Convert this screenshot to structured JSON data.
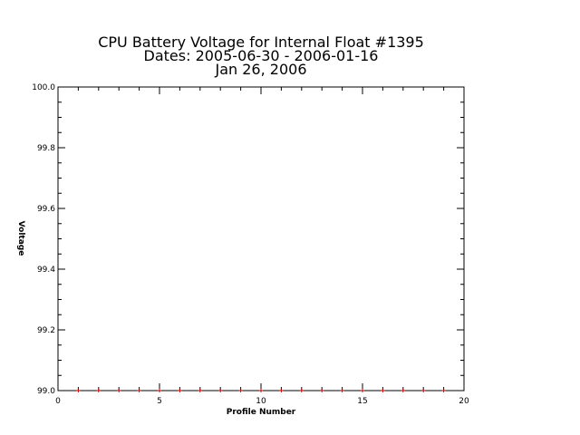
{
  "chart_data": {
    "type": "scatter",
    "title_lines": [
      "CPU Battery Voltage for Internal Float #1395",
      "Dates:  2005-06-30 -  2006-01-16",
      "Jan 26, 2006"
    ],
    "xlabel": "Profile Number",
    "ylabel": "Voltage",
    "xlim": [
      0,
      20
    ],
    "ylim": [
      99.0,
      100.0
    ],
    "x_ticks": [
      "0",
      "5",
      "10",
      "15",
      "20"
    ],
    "x_tick_values": [
      0,
      5,
      10,
      15,
      20
    ],
    "y_ticks": [
      "99.0",
      "99.2",
      "99.4",
      "99.6",
      "99.8",
      "100.0"
    ],
    "y_tick_values": [
      99.0,
      99.2,
      99.4,
      99.6,
      99.8,
      100.0
    ],
    "grid": false,
    "marker_color": "#cc0000",
    "series": [
      {
        "x": [
          1,
          2,
          3,
          4,
          5,
          6,
          7,
          8,
          9,
          10,
          11,
          12,
          13,
          14,
          15,
          16,
          17,
          18,
          19
        ],
        "y": [
          99.0,
          99.0,
          99.0,
          99.0,
          99.0,
          99.0,
          99.0,
          99.0,
          99.0,
          99.0,
          99.0,
          99.0,
          99.0,
          99.0,
          99.0,
          99.0,
          99.0,
          99.0,
          99.0
        ]
      }
    ]
  }
}
